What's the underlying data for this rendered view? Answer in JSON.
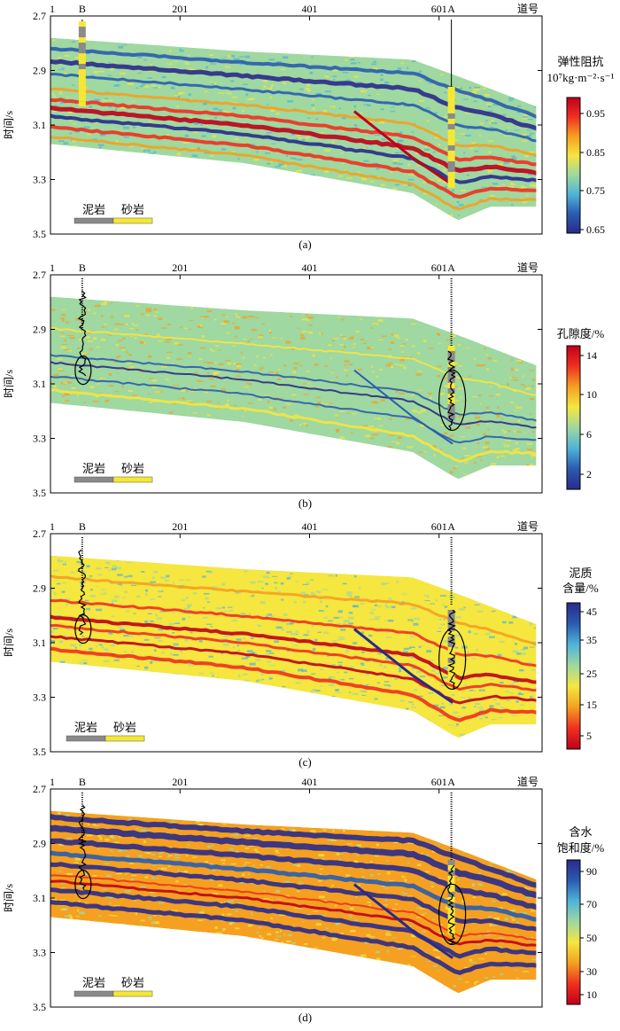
{
  "figure": {
    "panels": [
      {
        "id": "a",
        "caption": "(a)",
        "y_label": "时间/s",
        "x_ticks": [
          "1",
          "201",
          "401",
          "601",
          "道号"
        ],
        "y_ticks": [
          "2.7",
          "2.9",
          "3.1",
          "3.3",
          "3.5"
        ],
        "wells": [
          "B",
          "A"
        ],
        "legend_items": [
          "泥岩",
          "砂岩"
        ],
        "colorbar": {
          "title_lines": [
            "弹性阻抗",
            "10⁷kg·m⁻²·s⁻¹"
          ],
          "ticks": [
            "0.95",
            "0.85",
            "0.75",
            "0.65"
          ],
          "colors": [
            "#c0001a",
            "#f03020",
            "#f5a020",
            "#f5e640",
            "#9fd8a0",
            "#50b4d8",
            "#2a5cb0",
            "#2a2a8a"
          ]
        }
      },
      {
        "id": "b",
        "caption": "(b)",
        "y_label": "时间/s",
        "x_ticks": [
          "1",
          "201",
          "401",
          "601",
          "道号"
        ],
        "y_ticks": [
          "2.7",
          "2.9",
          "3.1",
          "3.3",
          "3.5"
        ],
        "wells": [
          "B",
          "A"
        ],
        "legend_items": [
          "泥岩",
          "砂岩"
        ],
        "colorbar": {
          "title_lines": [
            "孔隙度/%"
          ],
          "ticks": [
            "14",
            "10",
            "6",
            "2"
          ],
          "colors": [
            "#c0001a",
            "#f03020",
            "#f5a020",
            "#f5e640",
            "#9fd8a0",
            "#50b4d8",
            "#2a5cb0",
            "#2a2a8a"
          ]
        }
      },
      {
        "id": "c",
        "caption": "(c)",
        "y_label": "时间/s",
        "x_ticks": [
          "1",
          "201",
          "401",
          "601",
          "道号"
        ],
        "y_ticks": [
          "2.7",
          "2.9",
          "3.1",
          "3.3",
          "3.5"
        ],
        "wells": [
          "B",
          "A"
        ],
        "legend_items": [
          "泥岩",
          "砂岩"
        ],
        "colorbar": {
          "title_lines": [
            "泥质",
            "含量/%"
          ],
          "ticks": [
            "45",
            "35",
            "25",
            "15",
            "5"
          ],
          "colors": [
            "#2a2a8a",
            "#2a5cb0",
            "#50b4d8",
            "#9fd8a0",
            "#f5e640",
            "#f5a020",
            "#f03020",
            "#c0001a"
          ]
        }
      },
      {
        "id": "d",
        "caption": "(d)",
        "y_label": "时间/s",
        "x_ticks": [
          "1",
          "201",
          "401",
          "601",
          "道号"
        ],
        "y_ticks": [
          "2.7",
          "2.9",
          "3.1",
          "3.3",
          "3.5"
        ],
        "wells": [
          "B",
          "A"
        ],
        "legend_items": [
          "泥岩",
          "砂岩"
        ],
        "colorbar": {
          "title_lines": [
            "含水",
            "饱和度/%"
          ],
          "ticks": [
            "90",
            "70",
            "50",
            "30",
            "10"
          ],
          "colors": [
            "#2a2a8a",
            "#2a5cb0",
            "#50b4d8",
            "#9fd8a0",
            "#f5e640",
            "#f5a020",
            "#f03020",
            "#c0001a"
          ]
        }
      }
    ]
  },
  "chart_data": [
    {
      "type": "heatmap",
      "panel": "(a)",
      "ylabel": "时间/s",
      "xlabel": "道号",
      "x_ticks": [
        1,
        201,
        401,
        601
      ],
      "y_ticks": [
        2.7,
        2.9,
        3.1,
        3.3,
        3.5
      ],
      "ylim": [
        2.7,
        3.5
      ],
      "xlim": [
        1,
        760
      ],
      "wells": [
        {
          "name": "B",
          "trace": 50
        },
        {
          "name": "A",
          "trace": 620
        }
      ],
      "colorbar_title": "弹性阻抗 10⁷kg·m⁻²·s⁻¹",
      "colorbar_range": [
        0.62,
        1.0
      ],
      "colorbar_ticks": [
        0.95,
        0.85,
        0.75,
        0.65
      ],
      "top_horizon": {
        "trace": [
          1,
          300,
          560,
          640,
          760
        ],
        "time": [
          2.78,
          2.83,
          2.86,
          2.93,
          3.04
        ]
      },
      "base_horizon": {
        "trace": [
          1,
          300,
          560,
          630,
          680,
          760
        ],
        "time": [
          3.17,
          3.24,
          3.35,
          3.45,
          3.4,
          3.4
        ]
      }
    },
    {
      "type": "heatmap",
      "panel": "(b)",
      "ylabel": "时间/s",
      "xlabel": "道号",
      "x_ticks": [
        1,
        201,
        401,
        601
      ],
      "y_ticks": [
        2.7,
        2.9,
        3.1,
        3.3,
        3.5
      ],
      "ylim": [
        2.7,
        3.5
      ],
      "xlim": [
        1,
        760
      ],
      "wells": [
        {
          "name": "B",
          "trace": 50
        },
        {
          "name": "A",
          "trace": 620
        }
      ],
      "colorbar_title": "孔隙度/%",
      "colorbar_range": [
        0,
        16
      ],
      "colorbar_ticks": [
        14,
        10,
        6,
        2
      ],
      "top_horizon": {
        "trace": [
          1,
          300,
          560,
          640,
          760
        ],
        "time": [
          2.78,
          2.83,
          2.86,
          2.93,
          3.04
        ]
      },
      "base_horizon": {
        "trace": [
          1,
          300,
          560,
          630,
          680,
          760
        ],
        "time": [
          3.17,
          3.24,
          3.35,
          3.45,
          3.4,
          3.4
        ]
      }
    },
    {
      "type": "heatmap",
      "panel": "(c)",
      "ylabel": "时间/s",
      "xlabel": "道号",
      "x_ticks": [
        1,
        201,
        401,
        601
      ],
      "y_ticks": [
        2.7,
        2.9,
        3.1,
        3.3,
        3.5
      ],
      "ylim": [
        2.7,
        3.5
      ],
      "xlim": [
        1,
        760
      ],
      "wells": [
        {
          "name": "B",
          "trace": 50
        },
        {
          "name": "A",
          "trace": 620
        }
      ],
      "colorbar_title": "泥质含量/%",
      "colorbar_range": [
        0,
        50
      ],
      "colorbar_ticks": [
        45,
        35,
        25,
        15,
        5
      ],
      "top_horizon": {
        "trace": [
          1,
          300,
          560,
          640,
          760
        ],
        "time": [
          2.78,
          2.83,
          2.86,
          2.93,
          3.04
        ]
      },
      "base_horizon": {
        "trace": [
          1,
          300,
          560,
          630,
          680,
          760
        ],
        "time": [
          3.17,
          3.24,
          3.35,
          3.45,
          3.4,
          3.4
        ]
      }
    },
    {
      "type": "heatmap",
      "panel": "(d)",
      "ylabel": "时间/s",
      "xlabel": "道号",
      "x_ticks": [
        1,
        201,
        401,
        601
      ],
      "y_ticks": [
        2.7,
        2.9,
        3.1,
        3.3,
        3.5
      ],
      "ylim": [
        2.7,
        3.5
      ],
      "xlim": [
        1,
        760
      ],
      "wells": [
        {
          "name": "B",
          "trace": 50
        },
        {
          "name": "A",
          "trace": 620
        }
      ],
      "colorbar_title": "含水饱和度/%",
      "colorbar_range": [
        0,
        100
      ],
      "colorbar_ticks": [
        90,
        70,
        50,
        30,
        10
      ],
      "top_horizon": {
        "trace": [
          1,
          300,
          560,
          640,
          760
        ],
        "time": [
          2.78,
          2.83,
          2.86,
          2.93,
          3.04
        ]
      },
      "base_horizon": {
        "trace": [
          1,
          300,
          560,
          630,
          680,
          760
        ],
        "time": [
          3.17,
          3.24,
          3.35,
          3.45,
          3.4,
          3.4
        ]
      }
    }
  ]
}
